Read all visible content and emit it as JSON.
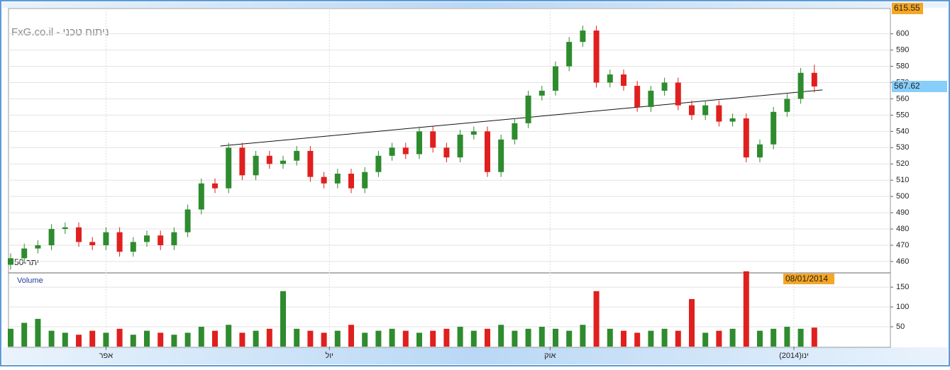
{
  "chart_data": {
    "type": "candlestick",
    "title": "FxG.co.il - ניתוח טכני",
    "legend_text": "יתר-50",
    "volume_title": "Volume",
    "date_label": "08/01/2014",
    "up_color": "#2e8b2e",
    "down_color": "#e01f1f",
    "open": [
      458,
      462,
      468,
      470,
      480,
      481,
      472,
      470,
      478,
      466,
      472,
      476,
      470,
      478,
      492,
      508,
      505,
      530,
      513,
      525,
      520,
      522,
      528,
      512,
      508,
      514,
      505,
      515,
      525,
      530,
      526,
      540,
      530,
      524,
      538,
      540,
      515,
      535,
      545,
      562,
      565,
      580,
      595,
      602,
      570,
      575,
      568,
      555,
      565,
      570,
      556,
      550,
      556,
      546,
      548,
      524,
      532,
      552,
      560,
      576
    ],
    "high": [
      465,
      471,
      473,
      483,
      484,
      484,
      475,
      481,
      481,
      475,
      479,
      479,
      481,
      495,
      511,
      511,
      533,
      533,
      528,
      528,
      525,
      531,
      531,
      515,
      517,
      517,
      518,
      528,
      533,
      533,
      543,
      543,
      533,
      541,
      543,
      543,
      538,
      548,
      565,
      568,
      583,
      598,
      605,
      605,
      578,
      578,
      571,
      568,
      573,
      573,
      559,
      559,
      559,
      551,
      551,
      535,
      555,
      563,
      579,
      581
    ],
    "low": [
      455,
      459,
      465,
      467,
      477,
      469,
      467,
      467,
      463,
      463,
      469,
      467,
      467,
      475,
      489,
      502,
      502,
      510,
      510,
      517,
      517,
      519,
      509,
      505,
      505,
      502,
      502,
      512,
      522,
      523,
      523,
      527,
      521,
      521,
      535,
      512,
      512,
      532,
      542,
      559,
      562,
      577,
      592,
      567,
      567,
      565,
      552,
      552,
      562,
      553,
      547,
      547,
      543,
      543,
      521,
      521,
      529,
      549,
      557,
      564
    ],
    "close": [
      462,
      468,
      470,
      480,
      481,
      472,
      470,
      478,
      466,
      472,
      476,
      470,
      478,
      492,
      508,
      505,
      530,
      513,
      525,
      520,
      522,
      528,
      512,
      508,
      514,
      505,
      515,
      525,
      530,
      526,
      540,
      530,
      524,
      538,
      540,
      515,
      535,
      545,
      562,
      565,
      580,
      595,
      602,
      570,
      575,
      568,
      555,
      565,
      570,
      556,
      550,
      556,
      546,
      548,
      524,
      532,
      552,
      560,
      576,
      567.62
    ],
    "volume": [
      45,
      60,
      70,
      40,
      35,
      30,
      40,
      35,
      45,
      30,
      40,
      35,
      30,
      35,
      50,
      40,
      55,
      35,
      40,
      45,
      140,
      45,
      40,
      35,
      40,
      55,
      35,
      40,
      45,
      40,
      35,
      40,
      45,
      50,
      40,
      45,
      55,
      40,
      45,
      50,
      45,
      40,
      55,
      140,
      45,
      40,
      35,
      40,
      45,
      40,
      120,
      35,
      40,
      45,
      190,
      40,
      45,
      50,
      45,
      48
    ],
    "ylim": [
      453,
      615.55
    ],
    "yticks": [
      460,
      470,
      480,
      490,
      500,
      510,
      520,
      530,
      540,
      550,
      560,
      570,
      580,
      590,
      600
    ],
    "top_label": 615.55,
    "volume_ylim": [
      0,
      186
    ],
    "volume_yticks": [
      50,
      100,
      150
    ],
    "xticks": [
      {
        "value": 7,
        "label": "אפר"
      },
      {
        "value": 23.4,
        "label": "יול"
      },
      {
        "value": 39.6,
        "label": "אוק"
      },
      {
        "value": 57.5,
        "label": "(2014)ינו"
      }
    ],
    "trendline": {
      "x": [
        15.4,
        59.6
      ],
      "y": [
        531,
        565.5
      ]
    },
    "grid": true
  }
}
